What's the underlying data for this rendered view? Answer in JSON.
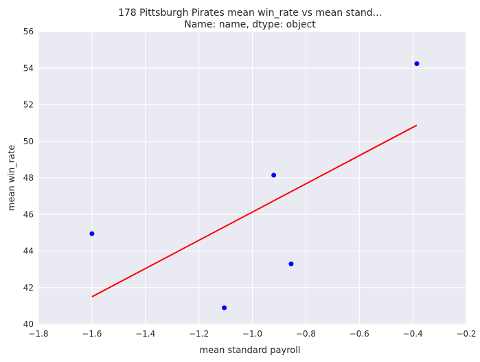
{
  "chart_data": {
    "type": "scatter",
    "title_line1": "178    Pittsburgh Pirates mean win_rate vs mean stand...",
    "title_line2": "Name: name, dtype: object",
    "xlabel": "mean standard payroll",
    "ylabel": "mean win_rate",
    "xlim": [
      -1.8,
      -0.2
    ],
    "ylim": [
      40,
      56
    ],
    "xticks": [
      -1.8,
      -1.6,
      -1.4,
      -1.2,
      -1.0,
      -0.8,
      -0.6,
      -0.4,
      -0.2
    ],
    "yticks": [
      40,
      42,
      44,
      46,
      48,
      50,
      52,
      54,
      56
    ],
    "xtick_labels": [
      "−1.8",
      "−1.6",
      "−1.4",
      "−1.2",
      "−1.0",
      "−0.8",
      "−0.6",
      "−0.4",
      "−0.2"
    ],
    "ytick_labels": [
      "40",
      "42",
      "44",
      "46",
      "48",
      "50",
      "52",
      "54",
      "56"
    ],
    "grid": true,
    "points": [
      {
        "x": -1.6,
        "y": 44.95
      },
      {
        "x": -1.105,
        "y": 40.9
      },
      {
        "x": -0.92,
        "y": 48.15
      },
      {
        "x": -0.855,
        "y": 43.3
      },
      {
        "x": -0.385,
        "y": 54.25
      }
    ],
    "fit_line": {
      "x": [
        -1.6,
        -0.385
      ],
      "y": [
        41.5,
        50.88
      ]
    },
    "colors": {
      "background": "#eaeaf2",
      "grid": "#ffffff",
      "points": "#0000ff",
      "fit_line": "#ff0000"
    }
  }
}
